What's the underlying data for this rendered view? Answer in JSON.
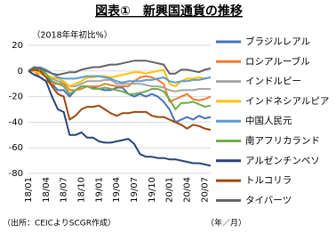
{
  "chart_data": {
    "type": "line",
    "title": "図表①　新興国通貨の推移",
    "subtitle": "（2018年年初比%）",
    "source": "（出所：CEICよりSCGR作成）",
    "x_unit": "（年／月）",
    "categories": [
      "18/01",
      null,
      null,
      "18/04",
      null,
      null,
      "18/07",
      null,
      null,
      "18/10",
      null,
      null,
      "19/01",
      null,
      null,
      "19/04",
      null,
      null,
      "19/07",
      null,
      null,
      "19/10",
      null,
      null,
      "20/01",
      null,
      null,
      "20/04",
      null,
      null,
      "20/07",
      null
    ],
    "ylim": [
      -80,
      20
    ],
    "yticks": [
      -80,
      -60,
      -40,
      -20,
      0,
      20
    ],
    "grid": true,
    "legend": "right",
    "series": [
      {
        "name": "ブラジルレアル",
        "color": "#4472c4",
        "values": [
          0,
          1,
          2,
          -3,
          -10,
          -15,
          -15,
          -20,
          -15,
          -12,
          -12,
          -13,
          -14,
          -15,
          -15,
          -13,
          -13,
          -18,
          -20,
          -18,
          -20,
          -18,
          -20,
          -24,
          -30,
          -40,
          -38,
          -36,
          -38,
          -35,
          -37,
          -36
        ]
      },
      {
        "name": "ロシアルーブル",
        "color": "#ed7d31",
        "values": [
          0,
          0,
          -5,
          -8,
          -10,
          -10,
          -10,
          -15,
          -15,
          -14,
          -12,
          -12,
          -12,
          -10,
          -11,
          -12,
          -12,
          -12,
          -8,
          -5,
          -4,
          -5,
          -7,
          -10,
          -24,
          -22,
          -20,
          -18,
          -22,
          -23,
          -22,
          -20
        ]
      },
      {
        "name": "インドルピー",
        "color": "#a5a5a5",
        "values": [
          0,
          0,
          -2,
          -4,
          -6,
          -8,
          -9,
          -12,
          -12,
          -10,
          -8,
          -8,
          -8,
          -7,
          -7,
          -10,
          -10,
          -10,
          -10,
          -10,
          -11,
          -12,
          -12,
          -13,
          -15,
          -16,
          -15,
          -15,
          -15,
          -14,
          -14,
          -14
        ]
      },
      {
        "name": "インドネシアルピア",
        "color": "#ffc000",
        "values": [
          0,
          0,
          -2,
          -3,
          -5,
          -6,
          -8,
          -12,
          -10,
          -8,
          -5,
          -5,
          -4,
          -4,
          -5,
          -4,
          -3,
          -2,
          -1,
          -1,
          -2,
          -1,
          0,
          1,
          -10,
          -12,
          -8,
          -6,
          -6,
          -5,
          -6,
          -5
        ]
      },
      {
        "name": "中国人民元",
        "color": "#5b9bd5",
        "values": [
          0,
          2,
          3,
          1,
          -2,
          -5,
          -6,
          -6,
          -6,
          -5,
          -4,
          -4,
          -4,
          -5,
          -6,
          -8,
          -9,
          -8,
          -8,
          -8,
          -7,
          -7,
          -6,
          -5,
          -8,
          -9,
          -8,
          -8,
          -7,
          -7,
          -6,
          -5
        ]
      },
      {
        "name": "南アフリカランド",
        "color": "#70ad47",
        "values": [
          0,
          3,
          2,
          -2,
          -8,
          -10,
          -12,
          -18,
          -15,
          -12,
          -12,
          -14,
          -14,
          -13,
          -14,
          -15,
          -16,
          -18,
          -18,
          -17,
          -16,
          -14,
          -14,
          -16,
          -22,
          -30,
          -25,
          -25,
          -24,
          -26,
          -28,
          -27
        ]
      },
      {
        "name": "アルゼンチンペソ",
        "color": "#264478",
        "values": [
          0,
          -3,
          -5,
          -8,
          -20,
          -30,
          -32,
          -50,
          -50,
          -48,
          -52,
          -52,
          -55,
          -56,
          -56,
          -55,
          -54,
          -53,
          -57,
          -65,
          -67,
          -67,
          -68,
          -68,
          -69,
          -69,
          -70,
          -71,
          -72,
          -72,
          -73,
          -74
        ]
      },
      {
        "name": "トルコリラ",
        "color": "#9e480e",
        "values": [
          0,
          1,
          0,
          -5,
          -12,
          -18,
          -20,
          -38,
          -35,
          -30,
          -28,
          -28,
          -27,
          -30,
          -33,
          -35,
          -33,
          -33,
          -32,
          -32,
          -32,
          -35,
          -36,
          -36,
          -38,
          -40,
          -42,
          -45,
          -42,
          -43,
          -45,
          -46
        ]
      },
      {
        "name": "タイバーツ",
        "color": "#636363",
        "values": [
          0,
          3,
          2,
          0,
          -2,
          -3,
          -2,
          -1,
          -1,
          1,
          2,
          3,
          3,
          4,
          5,
          5,
          6,
          7,
          8,
          8,
          8,
          7,
          6,
          5,
          -2,
          -2,
          1,
          1,
          0,
          -1,
          1,
          2
        ]
      }
    ]
  }
}
